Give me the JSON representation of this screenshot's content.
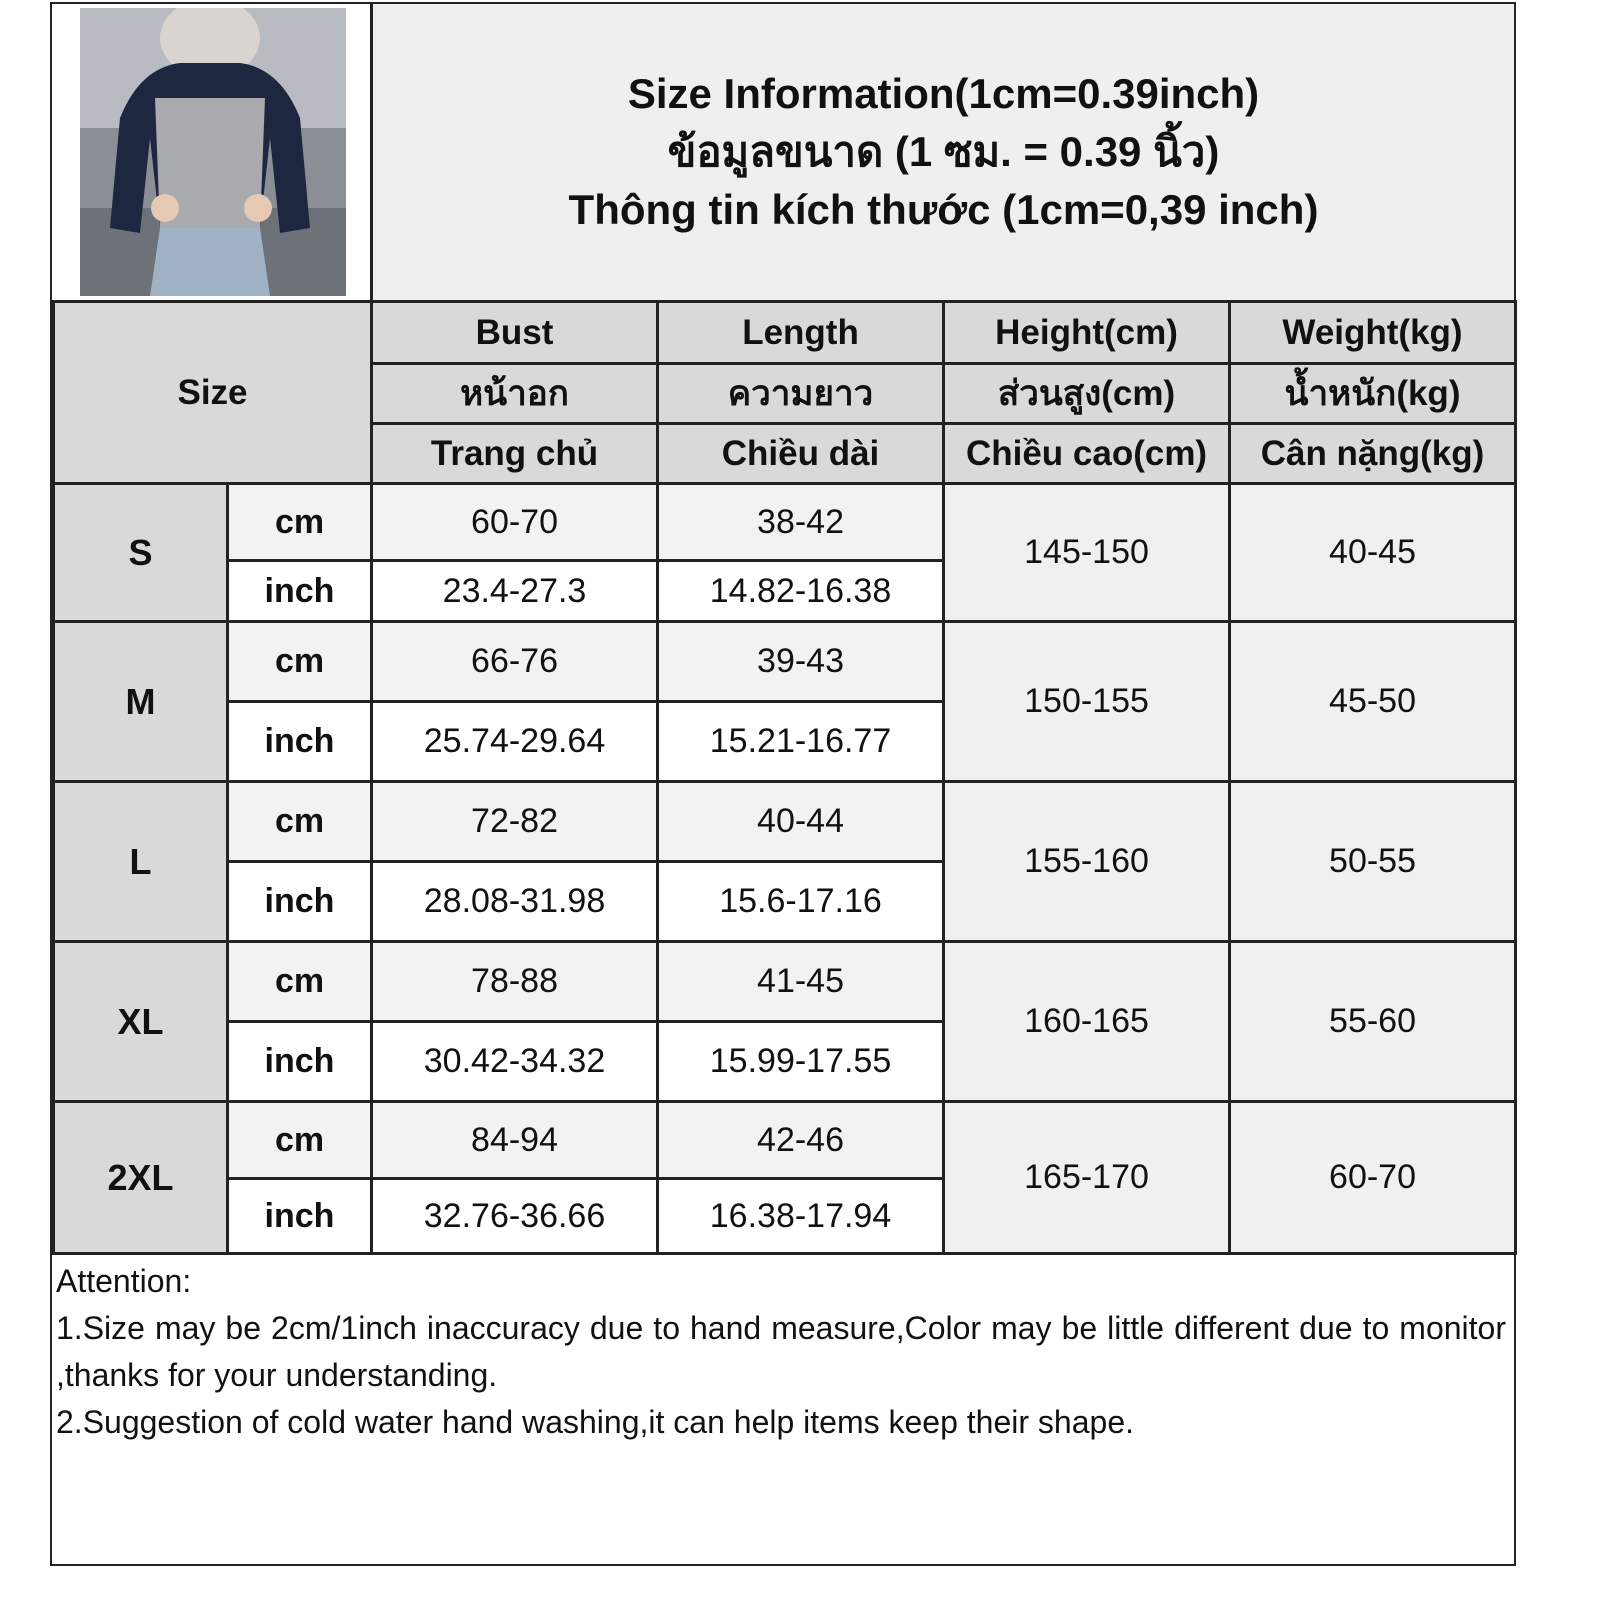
{
  "title": {
    "line1": "Size Information(1cm=0.39inch)",
    "line2": "ข้อมูลขนาด (1 ซม. = 0.39 นิ้ว)",
    "line3": "Thông tin kích thước (1cm=0,39 inch)"
  },
  "table": {
    "size_header": "Size",
    "columns": [
      {
        "en": "Bust",
        "th": "หน้าอก",
        "vi": "Trang chủ"
      },
      {
        "en": "Length",
        "th": "ความยาว",
        "vi": "Chiều dài"
      },
      {
        "en": "Height(cm)",
        "th": "ส่วนสูง(cm)",
        "vi": "Chiều cao(cm)"
      },
      {
        "en": "Weight(kg)",
        "th": "น้ำหนัก(kg)",
        "vi": "Cân nặng(kg)"
      }
    ],
    "unit_cm": "cm",
    "unit_inch": "inch",
    "rows": [
      {
        "size": "S",
        "bust_cm": "60-70",
        "length_cm": "38-42",
        "bust_inch": "23.4-27.3",
        "length_inch": "14.82-16.38",
        "height": "145-150",
        "weight": "40-45"
      },
      {
        "size": "M",
        "bust_cm": "66-76",
        "length_cm": "39-43",
        "bust_inch": "25.74-29.64",
        "length_inch": "15.21-16.77",
        "height": "150-155",
        "weight": "45-50"
      },
      {
        "size": "L",
        "bust_cm": "72-82",
        "length_cm": "40-44",
        "bust_inch": "28.08-31.98",
        "length_inch": "15.6-17.16",
        "height": "155-160",
        "weight": "50-55"
      },
      {
        "size": "XL",
        "bust_cm": "78-88",
        "length_cm": "41-45",
        "bust_inch": "30.42-34.32",
        "length_inch": "15.99-17.55",
        "height": "160-165",
        "weight": "55-60"
      },
      {
        "size": "2XL",
        "bust_cm": "84-94",
        "length_cm": "42-46",
        "bust_inch": "32.76-36.66",
        "length_inch": "16.38-17.94",
        "height": "165-170",
        "weight": "60-70"
      }
    ]
  },
  "attention": {
    "heading": "Attention:",
    "notes": [
      "1.Size may be 2cm/1inch inaccuracy due to hand measure,Color may be little different due to monitor ,thanks for your understanding.",
      "2.Suggestion of cold water hand washing,it can help items keep their shape."
    ]
  },
  "colors": {
    "header_gray": "#d9d9d9",
    "cm_row": "#f2f2f2",
    "border": "#222222"
  }
}
